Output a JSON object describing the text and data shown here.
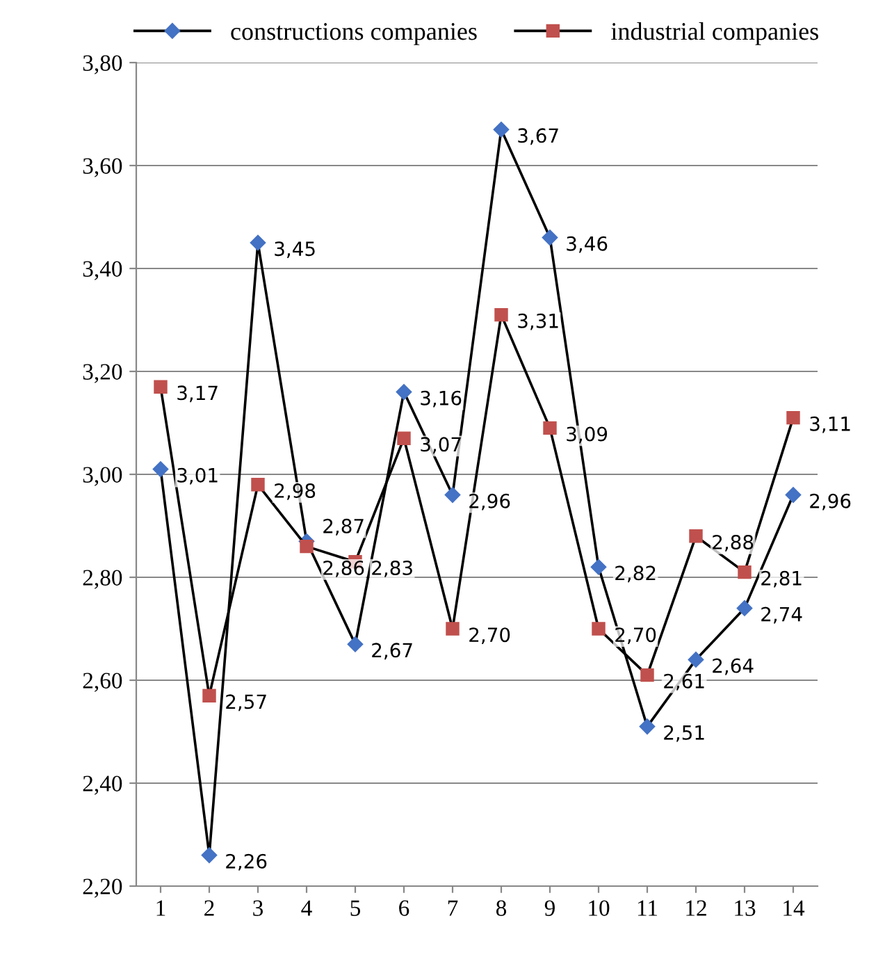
{
  "chart_data": {
    "type": "line",
    "categories": [
      "1",
      "2",
      "3",
      "4",
      "5",
      "6",
      "7",
      "8",
      "9",
      "10",
      "11",
      "12",
      "13",
      "14"
    ],
    "series": [
      {
        "name": "constructions companies",
        "color": "#4472c4",
        "marker": "diamond",
        "values": [
          3.01,
          2.26,
          3.45,
          2.87,
          2.67,
          3.16,
          2.96,
          3.67,
          3.46,
          2.82,
          2.51,
          2.64,
          2.74,
          2.96
        ],
        "value_labels": [
          "3,01",
          "2,26",
          "3,45",
          "2,87",
          "2,67",
          "3,16",
          "2,96",
          "3,67",
          "3,46",
          "2,82",
          "2,51",
          "2,64",
          "2,74",
          "2,96"
        ]
      },
      {
        "name": "industrial companies",
        "color": "#c0504d",
        "marker": "square",
        "values": [
          3.17,
          2.57,
          2.98,
          2.86,
          2.83,
          3.07,
          2.7,
          3.31,
          3.09,
          2.7,
          2.61,
          2.88,
          2.81,
          3.11
        ],
        "value_labels": [
          "3,17",
          "2,57",
          "2,98",
          "2,86",
          "2,83",
          "3,07",
          "2,70",
          "3,31",
          "3,09",
          "2,70",
          "2,61",
          "2,88",
          "2,81",
          "3,11"
        ]
      }
    ],
    "ylim": [
      2.2,
      3.8
    ],
    "yticks": [
      {
        "value": 2.2,
        "label": "2,20"
      },
      {
        "value": 2.4,
        "label": "2,40"
      },
      {
        "value": 2.6,
        "label": "2,60"
      },
      {
        "value": 2.8,
        "label": "2,80"
      },
      {
        "value": 3.0,
        "label": "3,00"
      },
      {
        "value": 3.2,
        "label": "3,20"
      },
      {
        "value": 3.4,
        "label": "3,40"
      },
      {
        "value": 3.6,
        "label": "3,60"
      },
      {
        "value": 3.8,
        "label": "3,80"
      }
    ],
    "grid": "y",
    "legend": "top",
    "line_style": "solid"
  }
}
